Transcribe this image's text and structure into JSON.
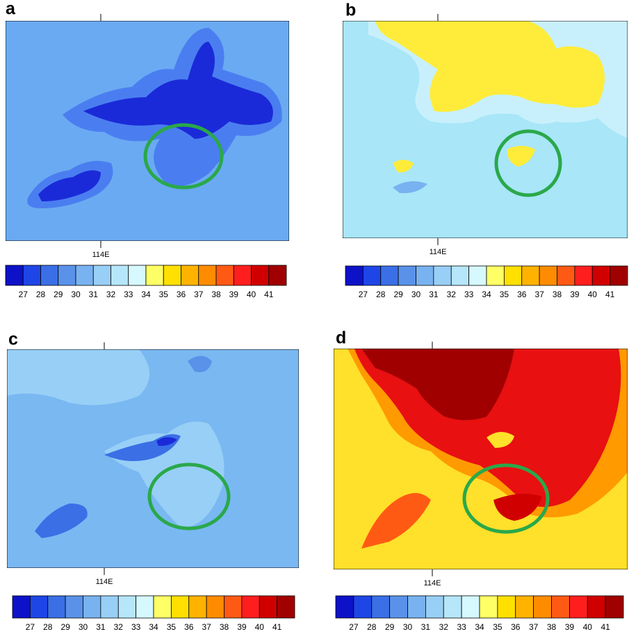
{
  "panels": [
    {
      "label": "a",
      "x_tick_label": "114E",
      "colorbar_labels": [
        "27",
        "28",
        "29",
        "30",
        "31",
        "32",
        "33",
        "34",
        "35",
        "36",
        "37",
        "38",
        "39",
        "40",
        "41"
      ]
    },
    {
      "label": "b",
      "x_tick_label": "114E",
      "colorbar_labels": [
        "27",
        "28",
        "29",
        "30",
        "31",
        "32",
        "33",
        "34",
        "35",
        "36",
        "37",
        "38",
        "39",
        "40",
        "41"
      ]
    },
    {
      "label": "c",
      "x_tick_label": "114E",
      "colorbar_labels": [
        "27",
        "28",
        "29",
        "30",
        "31",
        "32",
        "33",
        "34",
        "35",
        "36",
        "37",
        "38",
        "39",
        "40",
        "41"
      ]
    },
    {
      "label": "d",
      "x_tick_label": "114E",
      "colorbar_labels": [
        "27",
        "28",
        "29",
        "30",
        "31",
        "32",
        "33",
        "34",
        "35",
        "36",
        "37",
        "38",
        "39",
        "40",
        "41"
      ]
    }
  ],
  "colorbar_colors": [
    "#0d12c8",
    "#1e46e6",
    "#3a6fe6",
    "#5a92ea",
    "#79b2f0",
    "#98cff6",
    "#b6e6fa",
    "#d6f8ff",
    "#ffff66",
    "#ffe000",
    "#ffb300",
    "#ff8c00",
    "#ff5a14",
    "#ff1e1e",
    "#d00000",
    "#a00000"
  ]
}
